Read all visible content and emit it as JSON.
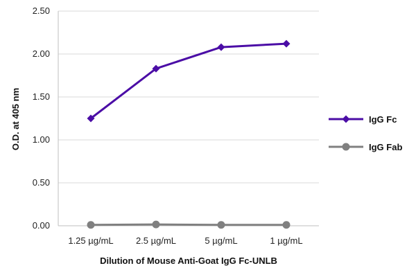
{
  "chart_data": {
    "type": "line",
    "title": "",
    "xlabel": "Dilution of Mouse Anti-Goat IgG Fc-UNLB",
    "ylabel": "O.D. at 405 nm",
    "categories": [
      "1.25 µg/mL",
      "2.5 µg/mL",
      "5 µg/mL",
      "1 µg/mL"
    ],
    "yticks": [
      "0.00",
      "0.50",
      "1.00",
      "1.50",
      "2.00",
      "2.50"
    ],
    "ylim": [
      0,
      2.5
    ],
    "grid": "horizontal",
    "legend_position": "right",
    "series": [
      {
        "name": "IgG Fc",
        "values": [
          1.25,
          1.83,
          2.08,
          2.12
        ],
        "color": "#4b0da6",
        "marker": "diamond"
      },
      {
        "name": "IgG Fab",
        "values": [
          0.01,
          0.015,
          0.01,
          0.01
        ],
        "color": "#808080",
        "marker": "circle"
      }
    ]
  }
}
